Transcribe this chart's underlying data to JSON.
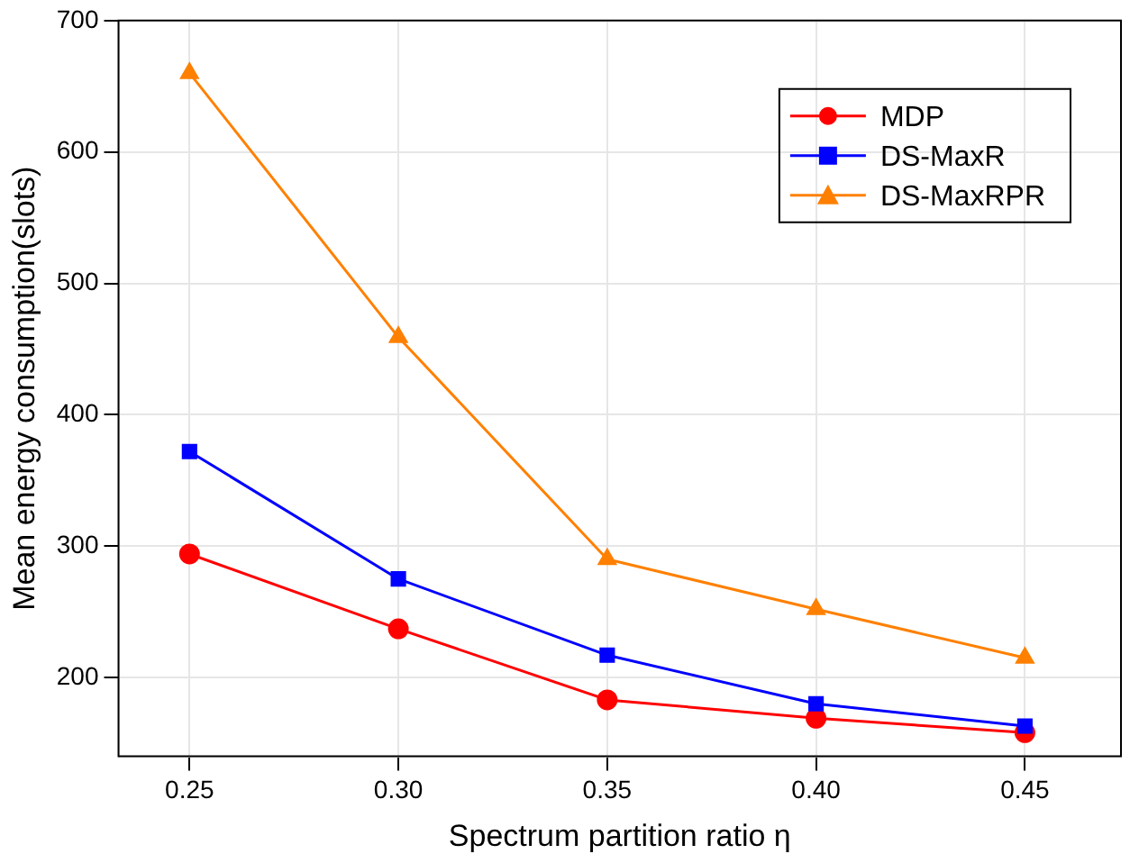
{
  "chart_data": {
    "type": "line",
    "xlabel": "Spectrum partition ratio η",
    "ylabel": "Mean energy consumption(slots)",
    "x": [
      0.25,
      0.3,
      0.35,
      0.4,
      0.45
    ],
    "series": [
      {
        "name": "MDP",
        "color": "#ff0000",
        "marker": "circle",
        "values": [
          294,
          237,
          183,
          169,
          158
        ]
      },
      {
        "name": "DS-MaxR",
        "color": "#0000ff",
        "marker": "square",
        "values": [
          372,
          275,
          217,
          180,
          163
        ]
      },
      {
        "name": "DS-MaxRPR",
        "color": "#ff8000",
        "marker": "triangle",
        "values": [
          660,
          459,
          290,
          252,
          215
        ]
      }
    ],
    "xlim": [
      0.233,
      0.473
    ],
    "xticks": [
      0.25,
      {
        "value": 0.3,
        "label": "0.30"
      },
      0.35,
      {
        "value": 0.4,
        "label": "0.40"
      },
      0.45
    ],
    "ylim": [
      140,
      700
    ],
    "yticks": [
      200,
      300,
      400,
      500,
      600,
      700
    ],
    "grid": true,
    "legend": "top right",
    "line_style": "solid"
  }
}
